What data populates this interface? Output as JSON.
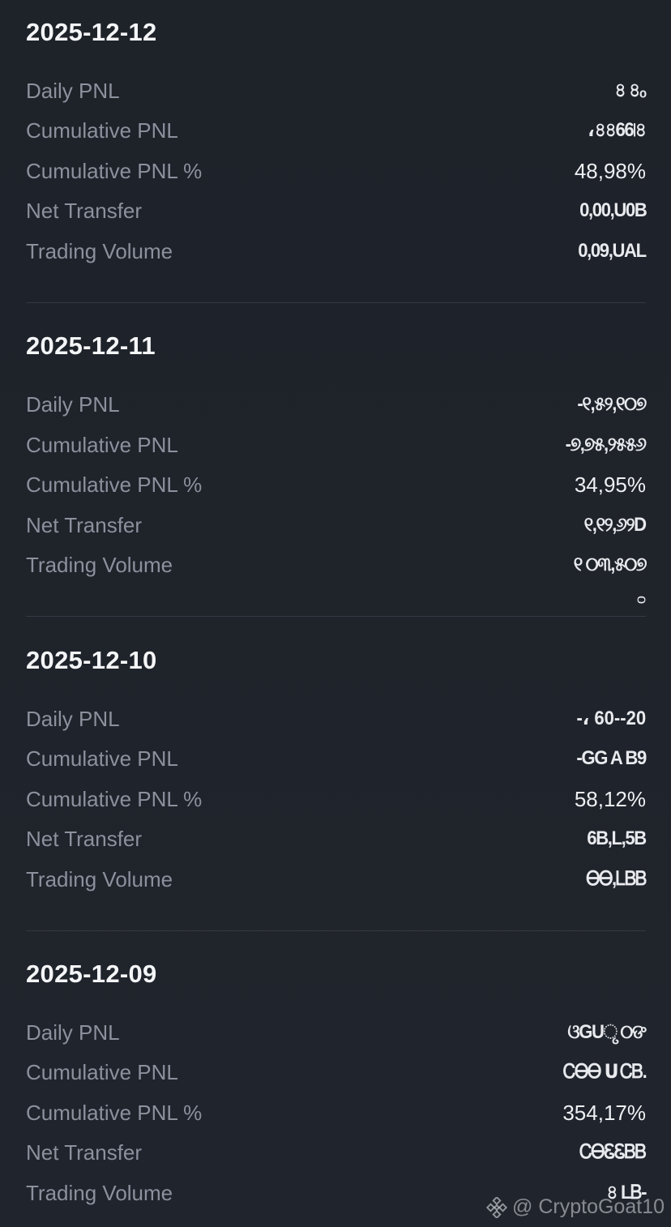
{
  "days": [
    {
      "date": "2025-12-12",
      "rows": [
        {
          "label": "Daily PNL",
          "value": "৪ ৪ₒ",
          "garbled": true
        },
        {
          "label": "Cumulative PNL",
          "value": "،৪৪66৷৪",
          "garbled": true
        },
        {
          "label": "Cumulative PNL %",
          "value": "48,98%",
          "garbled": false
        },
        {
          "label": "Net Transfer",
          "value": "0,00,U0B",
          "garbled": true
        },
        {
          "label": "Trading Volume",
          "value": "0,09,UAL",
          "garbled": true
        }
      ]
    },
    {
      "date": "2025-12-11",
      "rows": [
        {
          "label": "Daily PNL",
          "value": "-୧,୫୨,୧୦୭",
          "garbled": true
        },
        {
          "label": "Cumulative PNL",
          "value": "-୭,୭୫,୨୫୫୬",
          "garbled": true
        },
        {
          "label": "Cumulative PNL %",
          "value": "34,95%",
          "garbled": false
        },
        {
          "label": "Net Transfer",
          "value": "୧,୧୨,୬୨D",
          "garbled": true
        },
        {
          "label": "Trading Volume",
          "value": "୧ ୦୩,୫୦୭",
          "garbled": true
        }
      ],
      "extra": "ᴑ"
    },
    {
      "date": "2025-12-10",
      "rows": [
        {
          "label": "Daily PNL",
          "value": "-، 60--20",
          "garbled": true
        },
        {
          "label": "Cumulative PNL",
          "value": "-GG A B9",
          "garbled": true
        },
        {
          "label": "Cumulative PNL %",
          "value": "58,12%",
          "garbled": false
        },
        {
          "label": "Net Transfer",
          "value": "6B,L,5B",
          "garbled": true
        },
        {
          "label": "Trading Volume",
          "value": "ᎾᎾ,ᏞᏴᏴ",
          "garbled": true
        }
      ]
    },
    {
      "date": "2025-12-09",
      "rows": [
        {
          "label": "Daily PNL",
          "value": "ଓGUୃ ୦ଙ",
          "garbled": true
        },
        {
          "label": "Cumulative PNL",
          "value": "ᏟᎾᎾ Ս ᏟᏴ.",
          "garbled": true
        },
        {
          "label": "Cumulative PNL %",
          "value": "354,17%",
          "garbled": false
        },
        {
          "label": "Net Transfer",
          "value": "ᏟᎾᏋᏋᏴᏴ",
          "garbled": true
        },
        {
          "label": "Trading Volume",
          "value": "৪ LᏴ-",
          "garbled": true
        }
      ]
    }
  ],
  "watermark": {
    "text": "@ CryptoGoat10",
    "logo_icon": "binance-diamond-icon"
  },
  "colors": {
    "background": "#1f232b",
    "date_text": "#f4f5f7",
    "label_text": "#8b919d",
    "value_text": "#eef0f3",
    "divider": "#343945"
  }
}
